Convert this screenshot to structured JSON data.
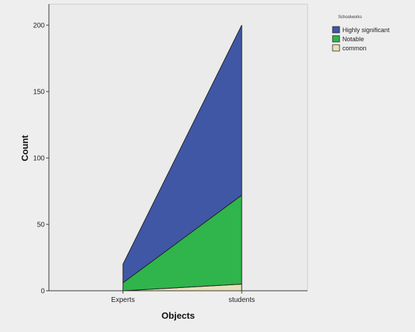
{
  "chart_data": {
    "type": "area",
    "stacked": true,
    "categories": [
      "Experts",
      "students"
    ],
    "series": [
      {
        "name": "common",
        "values": [
          0,
          5
        ],
        "color": "#e7e0b8"
      },
      {
        "name": "Notable",
        "values": [
          6,
          67
        ],
        "color": "#2fb54b"
      },
      {
        "name": "Highly significant",
        "values": [
          14,
          128
        ],
        "color": "#3f57a5"
      }
    ],
    "xlabel": "Objects",
    "ylabel": "Count",
    "ylim": [
      0,
      200
    ],
    "yticks": [
      0,
      50,
      100,
      150,
      200
    ],
    "grid": false,
    "legend": {
      "title": "Schoolworks",
      "placement": "right",
      "order": [
        "Highly significant",
        "Notable",
        "common"
      ]
    },
    "plot_background": "#ebebeb",
    "outline_color": "#222222"
  }
}
